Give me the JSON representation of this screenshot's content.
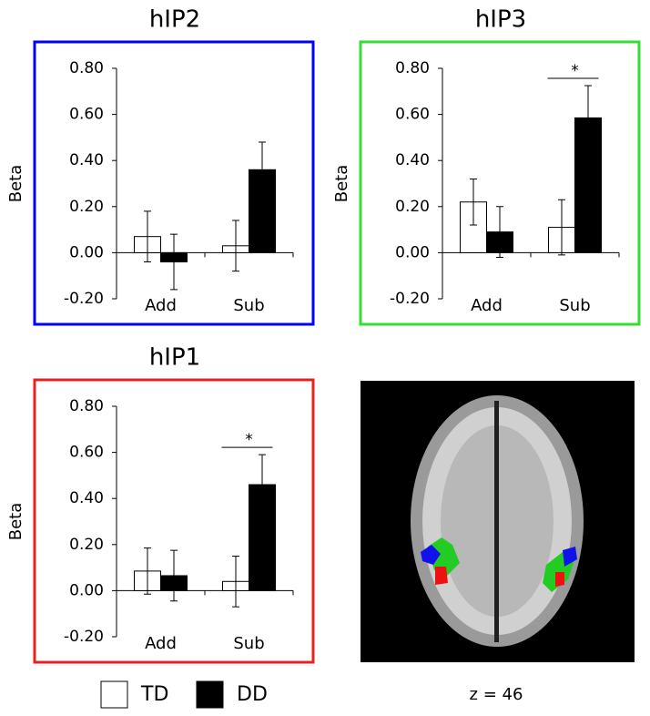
{
  "chart_data": [
    {
      "type": "bar",
      "title": "hIP2",
      "y_label": "Beta",
      "frame_color": "#0000ff",
      "categories": [
        "Add",
        "Sub"
      ],
      "series": [
        {
          "color": "#ffffff",
          "values": [
            0.07,
            0.03
          ],
          "errors": [
            0.11,
            0.11
          ]
        },
        {
          "color": "#000000",
          "values": [
            -0.04,
            0.36
          ],
          "errors": [
            0.12,
            0.12
          ]
        }
      ],
      "ylim": [
        -0.2,
        0.8
      ],
      "yticks": [
        {
          "value": -0.2,
          "label": "-0.20"
        },
        {
          "value": 0,
          "label": "0.00"
        },
        {
          "value": 0.2,
          "label": "0.20"
        },
        {
          "value": 0.4,
          "label": "0.40"
        },
        {
          "value": 0.6,
          "label": "0.60"
        },
        {
          "value": 0.8,
          "label": "0.80"
        }
      ]
    },
    {
      "type": "bar",
      "title": "hIP3",
      "y_label": "Beta",
      "frame_color": "#33dd33",
      "categories": [
        "Add",
        "Sub"
      ],
      "series": [
        {
          "color": "#ffffff",
          "values": [
            0.22,
            0.11
          ],
          "errors": [
            0.1,
            0.12
          ]
        },
        {
          "color": "#000000",
          "values": [
            0.09,
            0.585
          ],
          "errors": [
            0.11,
            0.14
          ]
        }
      ],
      "annotation": "*",
      "ylim": [
        -0.2,
        0.8
      ],
      "yticks": [
        {
          "value": -0.2,
          "label": "-0.20"
        },
        {
          "value": 0,
          "label": "0.00"
        },
        {
          "value": 0.2,
          "label": "0.20"
        },
        {
          "value": 0.4,
          "label": "0.40"
        },
        {
          "value": 0.6,
          "label": "0.60"
        },
        {
          "value": 0.8,
          "label": "0.80"
        }
      ]
    },
    {
      "type": "bar",
      "title": "hIP1",
      "y_label": "Beta",
      "frame_color": "#e82020",
      "categories": [
        "Add",
        "Sub"
      ],
      "series": [
        {
          "color": "#ffffff",
          "values": [
            0.085,
            0.04
          ],
          "errors": [
            0.1,
            0.11
          ]
        },
        {
          "color": "#000000",
          "values": [
            0.065,
            0.46
          ],
          "errors": [
            0.11,
            0.13
          ]
        }
      ],
      "annotation": "*",
      "ylim": [
        -0.2,
        0.8
      ],
      "yticks": [
        {
          "value": -0.2,
          "label": "-0.20"
        },
        {
          "value": 0,
          "label": "0.00"
        },
        {
          "value": 0.2,
          "label": "0.20"
        },
        {
          "value": 0.4,
          "label": "0.40"
        },
        {
          "value": 0.6,
          "label": "0.60"
        },
        {
          "value": 0.8,
          "label": "0.80"
        }
      ]
    }
  ],
  "legend": [
    {
      "name": "TD",
      "color": "#ffffff"
    },
    {
      "name": "DD",
      "color": "#000000"
    }
  ],
  "image": {
    "caption": "z = 46"
  }
}
